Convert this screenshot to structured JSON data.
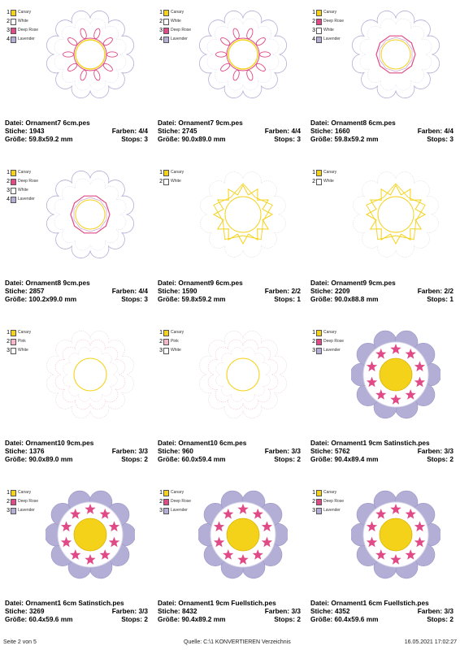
{
  "labels": {
    "file": "Datei:",
    "stitches": "Stiche:",
    "colors": "Farben:",
    "size": "Größe:",
    "stops": "Stops:"
  },
  "colors": {
    "Canary": "#f5d21a",
    "White": "#ffffff",
    "Deep Rose": "#e04a86",
    "Lavender": "#b3aed6",
    "Pink": "#f4b8c8"
  },
  "items": [
    {
      "file": "Ornament7 6cm.pes",
      "stitches": "1943",
      "colors": "4/4",
      "size": "59.8x59.2 mm",
      "stops": "3",
      "legend": [
        {
          "n": "1",
          "name": "Canary"
        },
        {
          "n": "2",
          "name": "White"
        },
        {
          "n": "3",
          "name": "Deep Rose"
        },
        {
          "n": "4",
          "name": "Lavender"
        }
      ],
      "style": "out7"
    },
    {
      "file": "Ornament7 9cm.pes",
      "stitches": "2745",
      "colors": "4/4",
      "size": "90.0x89.0 mm",
      "stops": "3",
      "legend": [
        {
          "n": "1",
          "name": "Canary"
        },
        {
          "n": "2",
          "name": "White"
        },
        {
          "n": "3",
          "name": "Deep Rose"
        },
        {
          "n": "4",
          "name": "Lavender"
        }
      ],
      "style": "out7"
    },
    {
      "file": "Ornament8 6cm.pes",
      "stitches": "1660",
      "colors": "4/4",
      "size": "59.8x59.2 mm",
      "stops": "3",
      "legend": [
        {
          "n": "1",
          "name": "Canary"
        },
        {
          "n": "2",
          "name": "Deep Rose"
        },
        {
          "n": "3",
          "name": "White"
        },
        {
          "n": "4",
          "name": "Lavender"
        }
      ],
      "style": "out8"
    },
    {
      "file": "Ornament8 9cm.pes",
      "stitches": "2857",
      "colors": "4/4",
      "size": "100.2x99.0 mm",
      "stops": "3",
      "legend": [
        {
          "n": "1",
          "name": "Canary"
        },
        {
          "n": "2",
          "name": "Deep Rose"
        },
        {
          "n": "3",
          "name": "White"
        },
        {
          "n": "4",
          "name": "Lavender"
        }
      ],
      "style": "out8"
    },
    {
      "file": "Ornament9 6cm.pes",
      "stitches": "1590",
      "colors": "2/2",
      "size": "59.8x59.2 mm",
      "stops": "1",
      "legend": [
        {
          "n": "1",
          "name": "Canary"
        },
        {
          "n": "2",
          "name": "White"
        }
      ],
      "style": "out9"
    },
    {
      "file": "Ornament9 9cm.pes",
      "stitches": "2209",
      "colors": "2/2",
      "size": "90.0x88.8 mm",
      "stops": "1",
      "legend": [
        {
          "n": "1",
          "name": "Canary"
        },
        {
          "n": "2",
          "name": "White"
        }
      ],
      "style": "out9"
    },
    {
      "file": "Ornament10 9cm.pes",
      "stitches": "1376",
      "colors": "3/3",
      "size": "90.0x89.0 mm",
      "stops": "2",
      "legend": [
        {
          "n": "1",
          "name": "Canary"
        },
        {
          "n": "2",
          "name": "Pink"
        },
        {
          "n": "3",
          "name": "White"
        }
      ],
      "style": "out10"
    },
    {
      "file": "Ornament10 6cm.pes",
      "stitches": "960",
      "colors": "3/3",
      "size": "60.0x59.4 mm",
      "stops": "2",
      "legend": [
        {
          "n": "1",
          "name": "Canary"
        },
        {
          "n": "2",
          "name": "Pink"
        },
        {
          "n": "3",
          "name": "White"
        }
      ],
      "style": "out10"
    },
    {
      "file": "Ornament1 9cm Satinstich.pes",
      "stitches": "5762",
      "colors": "3/3",
      "size": "90.4x89.4 mm",
      "stops": "2",
      "legend": [
        {
          "n": "1",
          "name": "Canary"
        },
        {
          "n": "2",
          "name": "Deep Rose"
        },
        {
          "n": "3",
          "name": "Lavender"
        }
      ],
      "style": "filled"
    },
    {
      "file": "Ornament1 6cm Satinstich.pes",
      "stitches": "3269",
      "colors": "3/3",
      "size": "60.4x59.6 mm",
      "stops": "2",
      "legend": [
        {
          "n": "1",
          "name": "Canary"
        },
        {
          "n": "2",
          "name": "Deep Rose"
        },
        {
          "n": "3",
          "name": "Lavender"
        }
      ],
      "style": "filled"
    },
    {
      "file": "Ornament1 9cm Fuellstich.pes",
      "stitches": "8432",
      "colors": "3/3",
      "size": "90.4x89.2 mm",
      "stops": "2",
      "legend": [
        {
          "n": "1",
          "name": "Canary"
        },
        {
          "n": "2",
          "name": "Deep Rose"
        },
        {
          "n": "3",
          "name": "Lavender"
        }
      ],
      "style": "filled"
    },
    {
      "file": "Ornament1 6cm Fuellstich.pes",
      "stitches": "4352",
      "colors": "3/3",
      "size": "60.4x59.6 mm",
      "stops": "2",
      "legend": [
        {
          "n": "1",
          "name": "Canary"
        },
        {
          "n": "2",
          "name": "Deep Rose"
        },
        {
          "n": "3",
          "name": "Lavender"
        }
      ],
      "style": "filled"
    }
  ],
  "footer": {
    "page": "Seite 2 von 5",
    "source": "Quelle: C:\\1 KONVERTIEREN Verzeichnis",
    "date": "16.05.2021 17:02:27"
  }
}
